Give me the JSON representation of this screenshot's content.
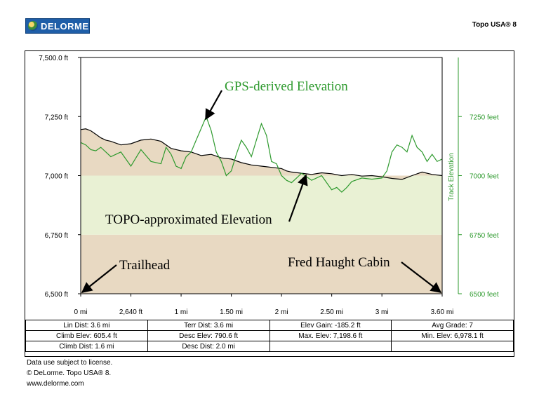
{
  "header": {
    "logo_text": "DELORME",
    "product": "Topo USA® 8"
  },
  "chart_data": {
    "type": "area",
    "left_axis": {
      "ticks": [
        "7,500.0 ft",
        "7,250 ft",
        "7,000 ft",
        "6,750 ft",
        "6,500 ft"
      ],
      "values": [
        7500,
        7250,
        7000,
        6750,
        6500
      ],
      "ylim": [
        6500,
        7500
      ]
    },
    "right_axis": {
      "label": "Track Elevation",
      "ticks": [
        "7250 feet",
        "7000 feet",
        "6750 feet",
        "6500 feet"
      ],
      "values": [
        7250,
        7000,
        6750,
        6500
      ],
      "color": "#2e9a2e"
    },
    "x_axis": {
      "ticks": [
        "0 mi",
        "2,640 ft",
        "1 mi",
        "1.50 mi",
        "2 mi",
        "2.50 mi",
        "3 mi",
        "3.60 mi"
      ],
      "values": [
        0,
        0.5,
        1,
        1.5,
        2,
        2.5,
        3,
        3.6
      ],
      "xlim": [
        0,
        3.6
      ]
    },
    "bands": [
      {
        "from": 6500,
        "to": 6750,
        "color": "#e8d9c2"
      },
      {
        "from": 6750,
        "to": 7000,
        "color": "#e9f1d4"
      },
      {
        "from": 7000,
        "to": 7500,
        "color": "#ffffff"
      }
    ],
    "series": [
      {
        "name": "TOPO-approximated Elevation",
        "color": "#000000",
        "fill": "#e8d9c2",
        "x": [
          0,
          0.05,
          0.1,
          0.15,
          0.2,
          0.25,
          0.3,
          0.4,
          0.5,
          0.6,
          0.7,
          0.8,
          0.9,
          1.0,
          1.1,
          1.2,
          1.3,
          1.4,
          1.5,
          1.6,
          1.7,
          1.8,
          1.9,
          2.0,
          2.05,
          2.1,
          2.2,
          2.3,
          2.4,
          2.5,
          2.6,
          2.7,
          2.8,
          2.9,
          3.0,
          3.1,
          3.2,
          3.3,
          3.4,
          3.5,
          3.6
        ],
        "y": [
          7195,
          7198,
          7190,
          7175,
          7160,
          7150,
          7145,
          7130,
          7135,
          7150,
          7155,
          7145,
          7115,
          7105,
          7100,
          7085,
          7090,
          7075,
          7070,
          7055,
          7045,
          7040,
          7035,
          7030,
          7020,
          7015,
          7010,
          7005,
          7012,
          7008,
          7000,
          7005,
          6998,
          7000,
          6995,
          6988,
          6984,
          7000,
          7015,
          7005,
          7000
        ]
      },
      {
        "name": "GPS-derived Elevation",
        "color": "#2e9a2e",
        "x": [
          0,
          0.05,
          0.1,
          0.15,
          0.2,
          0.3,
          0.4,
          0.5,
          0.6,
          0.7,
          0.8,
          0.85,
          0.9,
          0.95,
          1.0,
          1.05,
          1.1,
          1.15,
          1.2,
          1.25,
          1.3,
          1.35,
          1.4,
          1.45,
          1.5,
          1.55,
          1.6,
          1.65,
          1.7,
          1.75,
          1.8,
          1.85,
          1.9,
          1.95,
          2.0,
          2.05,
          2.1,
          2.15,
          2.2,
          2.3,
          2.4,
          2.5,
          2.55,
          2.6,
          2.65,
          2.7,
          2.8,
          2.9,
          3.0,
          3.05,
          3.1,
          3.15,
          3.2,
          3.25,
          3.3,
          3.35,
          3.4,
          3.45,
          3.5,
          3.55,
          3.6
        ],
        "y": [
          7140,
          7130,
          7110,
          7105,
          7120,
          7080,
          7100,
          7040,
          7110,
          7060,
          7050,
          7120,
          7090,
          7040,
          7030,
          7080,
          7100,
          7150,
          7200,
          7250,
          7190,
          7100,
          7060,
          7000,
          7020,
          7090,
          7150,
          7120,
          7080,
          7150,
          7220,
          7170,
          7060,
          7050,
          7000,
          6980,
          6970,
          6990,
          7010,
          6980,
          7000,
          6940,
          6950,
          6930,
          6950,
          6975,
          6990,
          6985,
          6990,
          7020,
          7100,
          7130,
          7120,
          7100,
          7170,
          7120,
          7100,
          7060,
          7090,
          7060,
          7070
        ]
      }
    ],
    "annotations": [
      {
        "text": "GPS-derived Elevation",
        "color": "#2e9a2e"
      },
      {
        "text": "TOPO-approximated Elevation",
        "color": "#000000"
      },
      {
        "text": "Trailhead",
        "color": "#000000"
      },
      {
        "text": "Fred Haught Cabin",
        "color": "#000000"
      }
    ]
  },
  "stats": [
    [
      "Lin Dist:  3.6 mi",
      "Terr Dist:  3.6 mi",
      "Elev Gain:  -185.2 ft",
      "Avg Grade:  7"
    ],
    [
      "Climb Elev:  605.4 ft",
      "Desc Elev:  790.6 ft",
      "Max. Elev:  7,198.6 ft",
      "Min. Elev:  6,978.1 ft"
    ],
    [
      "Climb Dist:  1.6 mi",
      "Desc Dist:  2.0 mi",
      "",
      ""
    ]
  ],
  "footer": {
    "line1": "Data use subject to license.",
    "line2": "© DeLorme. Topo USA® 8.",
    "line3": "www.delorme.com"
  }
}
